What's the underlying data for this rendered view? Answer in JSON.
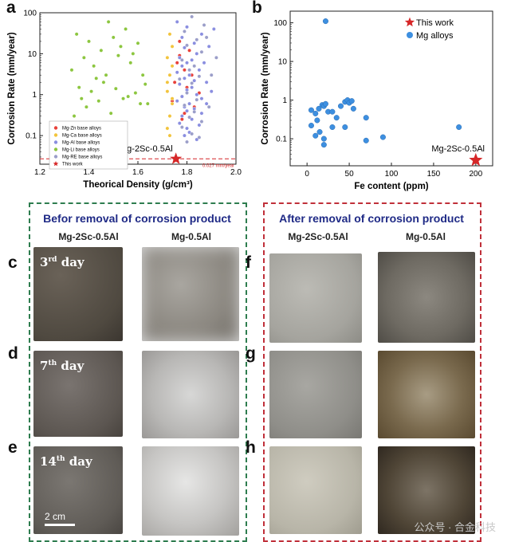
{
  "panel_labels": {
    "a": "a",
    "b": "b",
    "c": "c",
    "d": "d",
    "e": "e",
    "f": "f",
    "g": "g",
    "h": "h"
  },
  "chart_data": [
    {
      "type": "scatter",
      "panel": "a",
      "xlabel": "Theorical Density (g/cm³)",
      "ylabel": "Corrosion Rate (mm/year)",
      "xlim": [
        1.2,
        2.0
      ],
      "ylim": [
        0.02,
        100
      ],
      "yscale": "log",
      "xticks": [
        1.2,
        1.4,
        1.6,
        1.8,
        2.0
      ],
      "xtick_labels": [
        "1.2",
        "1.4",
        "1.6",
        "1.8",
        "2.0"
      ],
      "yticks": [
        0.1,
        1,
        10,
        100
      ],
      "ytick_labels": [
        "0.1",
        "1",
        "10",
        "100"
      ],
      "annotation": "Mg-2Sc-0.5Al",
      "reference_line": {
        "y": 0.027,
        "label": "0.027 mm/year",
        "color": "#d62728"
      },
      "legend": [
        "Mg-Zn base alloys",
        "Mg-Ca base alloys",
        "Mg-Al base alloys",
        "Mg-Li base alloys",
        "Mg-RE base alloys",
        "This work"
      ],
      "series": [
        {
          "name": "Mg-Zn base alloys",
          "color": "#e8413a",
          "points": [
            [
              1.77,
              9
            ],
            [
              1.79,
              4
            ],
            [
              1.75,
              2
            ],
            [
              1.82,
              3
            ],
            [
              1.78,
              0.9
            ],
            [
              1.8,
              1.5
            ],
            [
              1.76,
              6
            ],
            [
              1.81,
              12
            ],
            [
              1.74,
              0.7
            ],
            [
              1.83,
              0.5
            ],
            [
              1.79,
              0.35
            ],
            [
              1.77,
              20
            ],
            [
              1.85,
              1.1
            ],
            [
              1.78,
              0.25
            ]
          ]
        },
        {
          "name": "Mg-Ca base alloys",
          "color": "#f2c43c",
          "points": [
            [
              1.73,
              30
            ],
            [
              1.74,
              15
            ],
            [
              1.72,
              8
            ],
            [
              1.74,
              5
            ],
            [
              1.73,
              3
            ],
            [
              1.72,
              1.2
            ],
            [
              1.74,
              0.6
            ],
            [
              1.73,
              0.3
            ],
            [
              1.72,
              0.15
            ],
            [
              1.73,
              0.1
            ],
            [
              1.74,
              0.8
            ],
            [
              1.72,
              2
            ]
          ]
        },
        {
          "name": "Mg-Al base alloys",
          "color": "#8a8ee0",
          "points": [
            [
              1.76,
              60
            ],
            [
              1.8,
              45
            ],
            [
              1.86,
              30
            ],
            [
              1.78,
              25
            ],
            [
              1.83,
              18
            ],
            [
              1.79,
              14
            ],
            [
              1.84,
              10
            ],
            [
              1.77,
              8
            ],
            [
              1.82,
              7
            ],
            [
              1.8,
              6
            ],
            [
              1.78,
              5
            ],
            [
              1.85,
              4
            ],
            [
              1.76,
              3.5
            ],
            [
              1.81,
              3
            ],
            [
              1.79,
              2.5
            ],
            [
              1.83,
              2.2
            ],
            [
              1.77,
              1.8
            ],
            [
              1.82,
              1.5
            ],
            [
              1.8,
              1.3
            ],
            [
              1.84,
              1.0
            ],
            [
              1.78,
              0.9
            ],
            [
              1.86,
              0.8
            ],
            [
              1.76,
              0.7
            ],
            [
              1.81,
              0.6
            ],
            [
              1.79,
              0.5
            ],
            [
              1.83,
              0.45
            ],
            [
              1.8,
              0.4
            ],
            [
              1.78,
              0.3
            ],
            [
              1.82,
              0.25
            ],
            [
              1.77,
              0.2
            ],
            [
              1.85,
              0.18
            ],
            [
              1.8,
              0.15
            ],
            [
              1.81,
              0.12
            ],
            [
              1.79,
              0.1
            ],
            [
              1.84,
              0.08
            ],
            [
              1.88,
              2
            ],
            [
              1.9,
              1.2
            ],
            [
              1.87,
              6
            ],
            [
              1.89,
              15
            ],
            [
              1.91,
              40
            ],
            [
              1.86,
              0.35
            ],
            [
              1.88,
              0.6
            ]
          ]
        },
        {
          "name": "Mg-Li base alloys",
          "color": "#8cc63f",
          "points": [
            [
              1.35,
              30
            ],
            [
              1.4,
              20
            ],
            [
              1.45,
              12
            ],
            [
              1.5,
              25
            ],
            [
              1.55,
              40
            ],
            [
              1.6,
              18
            ],
            [
              1.38,
              8
            ],
            [
              1.42,
              5
            ],
            [
              1.47,
              3
            ],
            [
              1.52,
              9
            ],
            [
              1.57,
              6
            ],
            [
              1.62,
              3
            ],
            [
              1.36,
              1.5
            ],
            [
              1.41,
              1.2
            ],
            [
              1.46,
              2
            ],
            [
              1.51,
              1.4
            ],
            [
              1.56,
              0.9
            ],
            [
              1.61,
              0.6
            ],
            [
              1.39,
              0.5
            ],
            [
              1.44,
              0.7
            ],
            [
              1.49,
              0.35
            ],
            [
              1.54,
              0.8
            ],
            [
              1.59,
              1.1
            ],
            [
              1.64,
              0.6
            ],
            [
              1.33,
              4
            ],
            [
              1.48,
              60
            ],
            [
              1.53,
              15
            ],
            [
              1.58,
              10
            ],
            [
              1.43,
              2.5
            ],
            [
              1.37,
              0.8
            ],
            [
              1.63,
              1.8
            ],
            [
              1.34,
              0.3
            ]
          ]
        },
        {
          "name": "Mg-RE base alloys",
          "color": "#9b9ec9",
          "points": [
            [
              1.82,
              80
            ],
            [
              1.87,
              50
            ],
            [
              1.79,
              35
            ],
            [
              1.84,
              22
            ],
            [
              1.8,
              16
            ],
            [
              1.86,
              11
            ],
            [
              1.78,
              7
            ],
            [
              1.83,
              5
            ],
            [
              1.81,
              4
            ],
            [
              1.85,
              2.8
            ],
            [
              1.77,
              2.4
            ],
            [
              1.82,
              1.9
            ],
            [
              1.8,
              1.1
            ],
            [
              1.84,
              0.75
            ],
            [
              1.79,
              0.55
            ],
            [
              1.83,
              0.38
            ],
            [
              1.81,
              0.28
            ],
            [
              1.86,
              0.22
            ],
            [
              1.78,
              0.16
            ],
            [
              1.82,
              0.11
            ],
            [
              1.85,
              0.09
            ],
            [
              1.8,
              0.07
            ],
            [
              1.89,
              0.5
            ],
            [
              1.9,
              3
            ],
            [
              1.92,
              8
            ],
            [
              1.88,
              25
            ]
          ]
        },
        {
          "name": "This work",
          "color": "#d62728",
          "marker": "star",
          "points": [
            [
              1.755,
              0.027
            ]
          ]
        }
      ]
    },
    {
      "type": "scatter",
      "panel": "b",
      "xlabel": "Fe content (ppm)",
      "ylabel": "Corrosion Rate (mm/year)",
      "xlim": [
        -20,
        220
      ],
      "ylim": [
        0.02,
        200
      ],
      "yscale": "log",
      "xticks": [
        0,
        50,
        100,
        150,
        200
      ],
      "xtick_labels": [
        "0",
        "50",
        "100",
        "150",
        "200"
      ],
      "yticks": [
        0.1,
        1,
        10,
        100
      ],
      "ytick_labels": [
        "0.1",
        "1",
        "10",
        "100"
      ],
      "annotation": "Mg-2Sc-0.5Al",
      "legend": [
        "This work",
        "Mg alloys"
      ],
      "series": [
        {
          "name": "Mg alloys",
          "color": "#3d8fe0",
          "points": [
            [
              22,
              110
            ],
            [
              5,
              0.55
            ],
            [
              10,
              0.45
            ],
            [
              14,
              0.6
            ],
            [
              18,
              0.75
            ],
            [
              20,
              0.7
            ],
            [
              22,
              0.8
            ],
            [
              25,
              0.5
            ],
            [
              30,
              0.5
            ],
            [
              35,
              0.35
            ],
            [
              40,
              0.7
            ],
            [
              45,
              0.9
            ],
            [
              48,
              1.0
            ],
            [
              50,
              0.85
            ],
            [
              53,
              0.95
            ],
            [
              55,
              0.6
            ],
            [
              5,
              0.22
            ],
            [
              10,
              0.12
            ],
            [
              15,
              0.15
            ],
            [
              20,
              0.1
            ],
            [
              20,
              0.07
            ],
            [
              30,
              0.2
            ],
            [
              45,
              0.2
            ],
            [
              70,
              0.35
            ],
            [
              70,
              0.09
            ],
            [
              90,
              0.11
            ],
            [
              180,
              0.2
            ],
            [
              12,
              0.3
            ]
          ]
        },
        {
          "name": "This work",
          "color": "#d62728",
          "marker": "star",
          "points": [
            [
              200,
              0.028
            ]
          ]
        }
      ]
    }
  ],
  "photos": {
    "left_title": "Befor removal of corrosion product",
    "right_title": "After removal of corrosion product",
    "col_heads": [
      "Mg-2Sc-0.5Al",
      "Mg-0.5Al",
      "Mg-2Sc-0.5Al",
      "Mg-0.5Al"
    ],
    "days": {
      "c": {
        "num": "3",
        "sup": "rd",
        "word": " day"
      },
      "d": {
        "num": "7",
        "sup": "th",
        "word": " day"
      },
      "e": {
        "num": "14",
        "sup": "th",
        "word": " day"
      }
    },
    "scale_bar": "2 cm",
    "watermark": "公众号 · 合金科技",
    "colors": {
      "left_box": "#2e7d4f",
      "right_box": "#c0303a",
      "title_color": "#1f2a86"
    }
  }
}
